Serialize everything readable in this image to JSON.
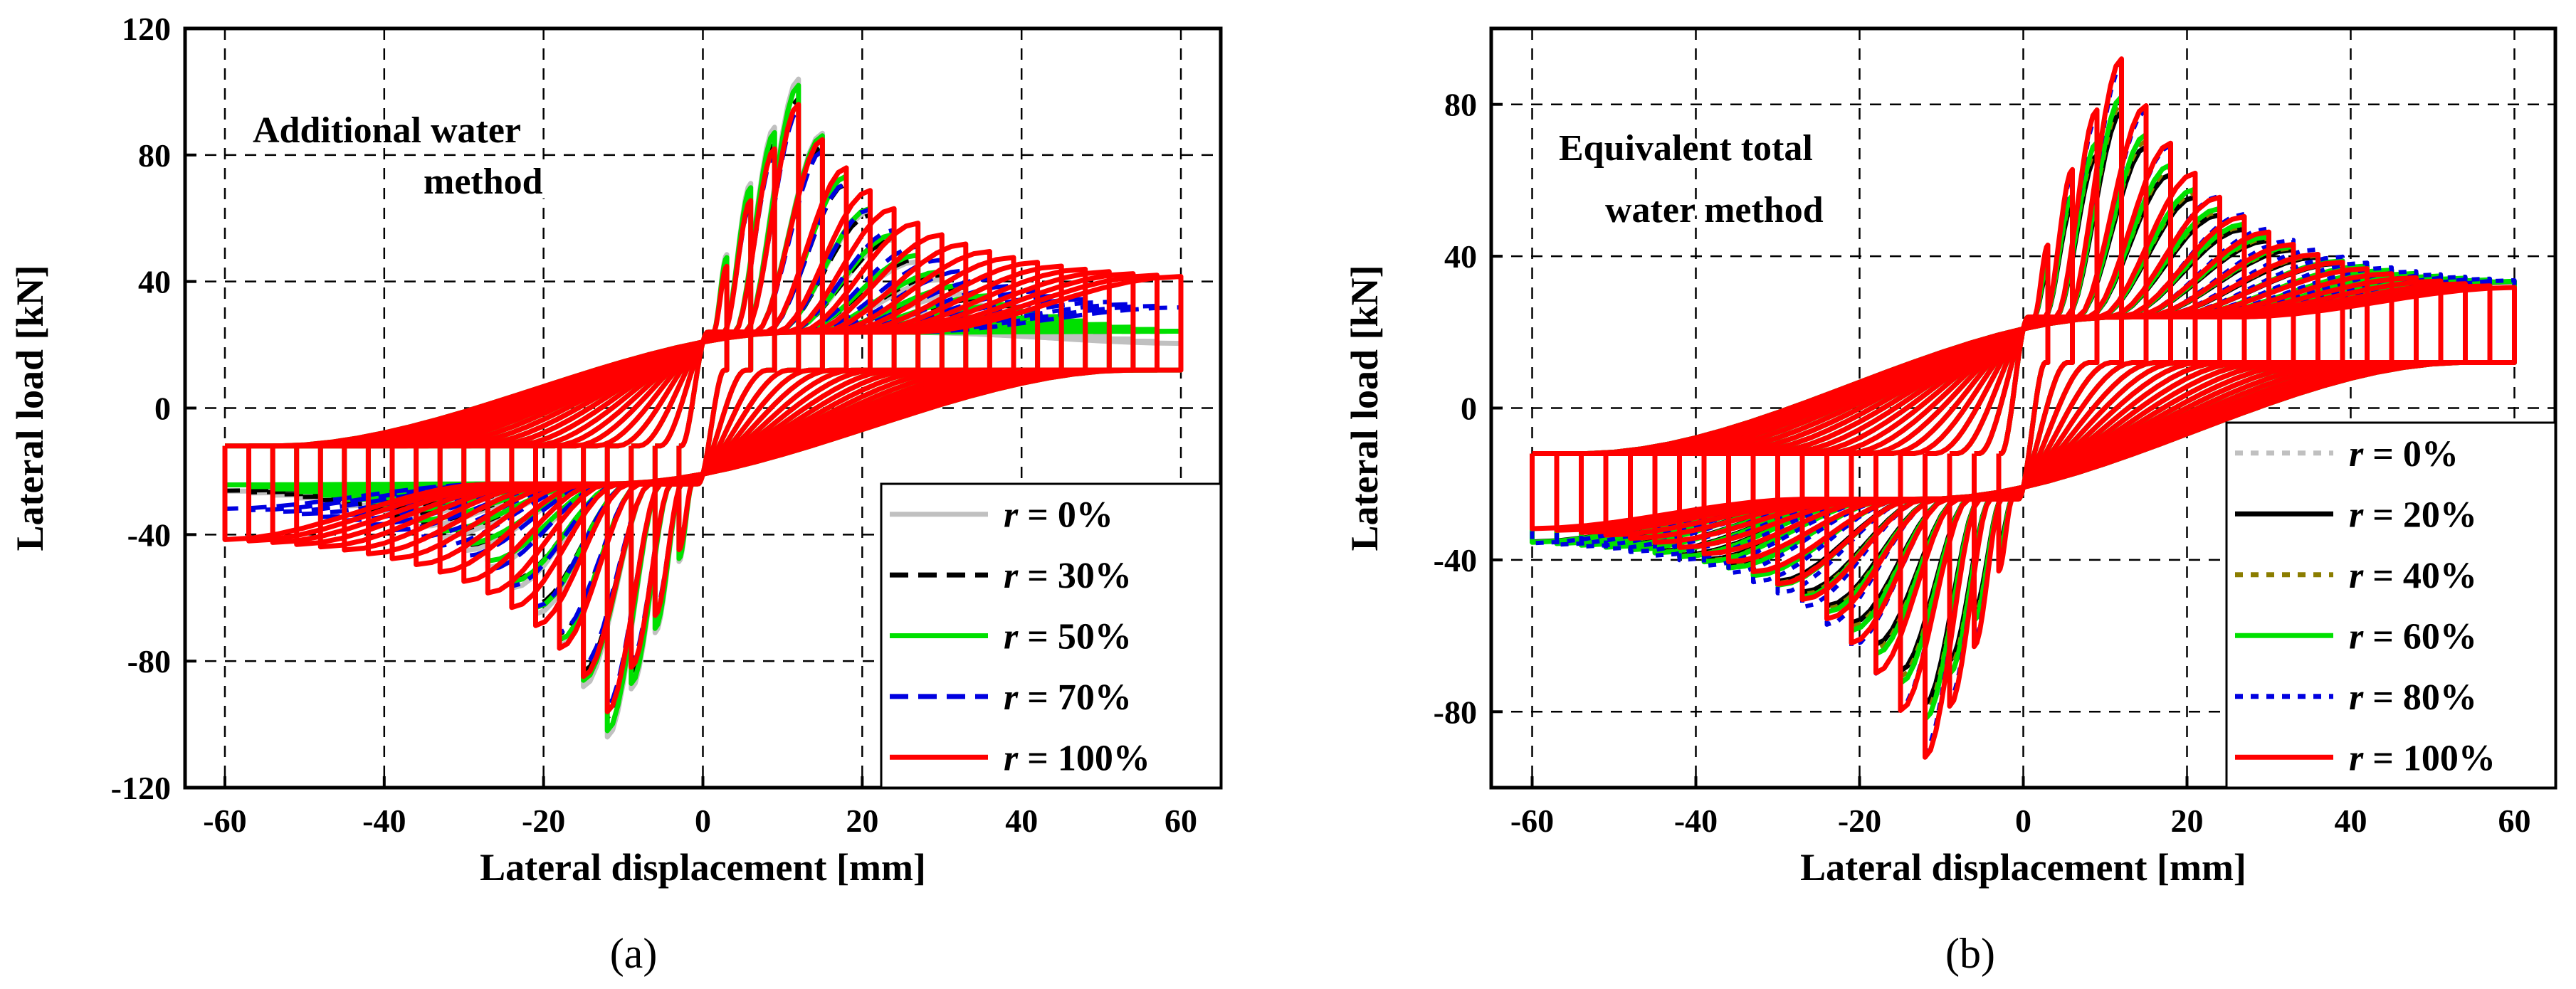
{
  "chart_data": [
    {
      "type": "line",
      "panel_label": "(a)",
      "annotation": [
        "Additional water",
        "method"
      ],
      "xlabel": "Lateral displacement [mm]",
      "ylabel": "Lateral load [kN]",
      "xlim": [
        -65,
        65
      ],
      "ylim": [
        -120,
        120
      ],
      "xticks": [
        "-60",
        "-40",
        "-20",
        "0",
        "20",
        "40",
        "60"
      ],
      "yticks": [
        "120",
        "80",
        "40",
        "0",
        "-40",
        "-80",
        "-120"
      ],
      "grid": true,
      "legend_position": "bottom-right",
      "cycle_amplitudes_mm": [
        3,
        6,
        9,
        12,
        15,
        18,
        21,
        24,
        27,
        30,
        33,
        36,
        39,
        42,
        45,
        48,
        51,
        54,
        57,
        60
      ],
      "series": [
        {
          "name": "r = 0%",
          "r_label": "r",
          "value_label": " = 0%",
          "color": "#c0c0c0",
          "dash": "solid",
          "peak_load_kN": [
            104,
            -104
          ],
          "load_at_60mm_kN": [
            18,
            -24
          ]
        },
        {
          "name": "r = 30%",
          "r_label": "r",
          "value_label": " = 30%",
          "color": "#000000",
          "dash": "dashed",
          "peak_load_kN": [
            98,
            -98
          ],
          "load_at_60mm_kN": [
            22,
            -24
          ]
        },
        {
          "name": "r = 50%",
          "r_label": "r",
          "value_label": " = 50%",
          "color": "#00e000",
          "dash": "solid",
          "peak_load_kN": [
            102,
            -102
          ],
          "load_at_60mm_kN": [
            22,
            -22
          ]
        },
        {
          "name": "r = 70%",
          "r_label": "r",
          "value_label": " = 70%",
          "color": "#0000e0",
          "dash": "dashed",
          "peak_load_kN": [
            94,
            -94
          ],
          "load_at_60mm_kN": [
            30,
            -30
          ]
        },
        {
          "name": "r = 100%",
          "r_label": "r",
          "value_label": " = 100%",
          "color": "#ff0000",
          "dash": "solid",
          "peak_load_kN": [
            96,
            -96
          ],
          "load_at_60mm_kN": [
            40,
            -40
          ]
        }
      ]
    },
    {
      "type": "line",
      "panel_label": "(b)",
      "annotation": [
        "Equivalent total",
        "water method"
      ],
      "xlabel": "Lateral displacement [mm]",
      "ylabel": "Lateral load [kN]",
      "xlim": [
        -65,
        65
      ],
      "ylim": [
        -100,
        100
      ],
      "xticks": [
        "-60",
        "-40",
        "-20",
        "0",
        "20",
        "40",
        "60"
      ],
      "yticks": [
        "80",
        "40",
        "0",
        "-40",
        "-80"
      ],
      "grid": true,
      "legend_position": "bottom-right",
      "cycle_amplitudes_mm": [
        3,
        6,
        9,
        12,
        15,
        18,
        21,
        24,
        27,
        30,
        33,
        36,
        39,
        42,
        45,
        48,
        51,
        54,
        57,
        60
      ],
      "series": [
        {
          "name": "r = 0%",
          "r_label": "r",
          "value_label": " = 0%",
          "color": "#c0c0c0",
          "dash": "dotted",
          "peak_load_kN": [
            82,
            -82
          ],
          "load_at_60mm_kN": [
            32,
            -34
          ]
        },
        {
          "name": "r = 20%",
          "r_label": "r",
          "value_label": " = 20%",
          "color": "#000000",
          "dash": "solid",
          "peak_load_kN": [
            78,
            -78
          ],
          "load_at_60mm_kN": [
            32,
            -34
          ]
        },
        {
          "name": "r = 40%",
          "r_label": "r",
          "value_label": " = 40%",
          "color": "#8b7d00",
          "dash": "dotted",
          "peak_load_kN": [
            80,
            -80
          ],
          "load_at_60mm_kN": [
            32,
            -34
          ]
        },
        {
          "name": "r = 60%",
          "r_label": "r",
          "value_label": " = 60%",
          "color": "#00e000",
          "dash": "solid",
          "peak_load_kN": [
            82,
            -82
          ],
          "load_at_60mm_kN": [
            32,
            -34
          ]
        },
        {
          "name": "r = 80%",
          "r_label": "r",
          "value_label": " = 80%",
          "color": "#0000e0",
          "dash": "dotted",
          "peak_load_kN": [
            90,
            -90
          ],
          "load_at_60mm_kN": [
            32,
            -34
          ]
        },
        {
          "name": "r = 100%",
          "r_label": "r",
          "value_label": " = 100%",
          "color": "#ff0000",
          "dash": "solid",
          "peak_load_kN": [
            92,
            -92
          ],
          "load_at_60mm_kN": [
            30,
            -30
          ]
        }
      ]
    }
  ]
}
